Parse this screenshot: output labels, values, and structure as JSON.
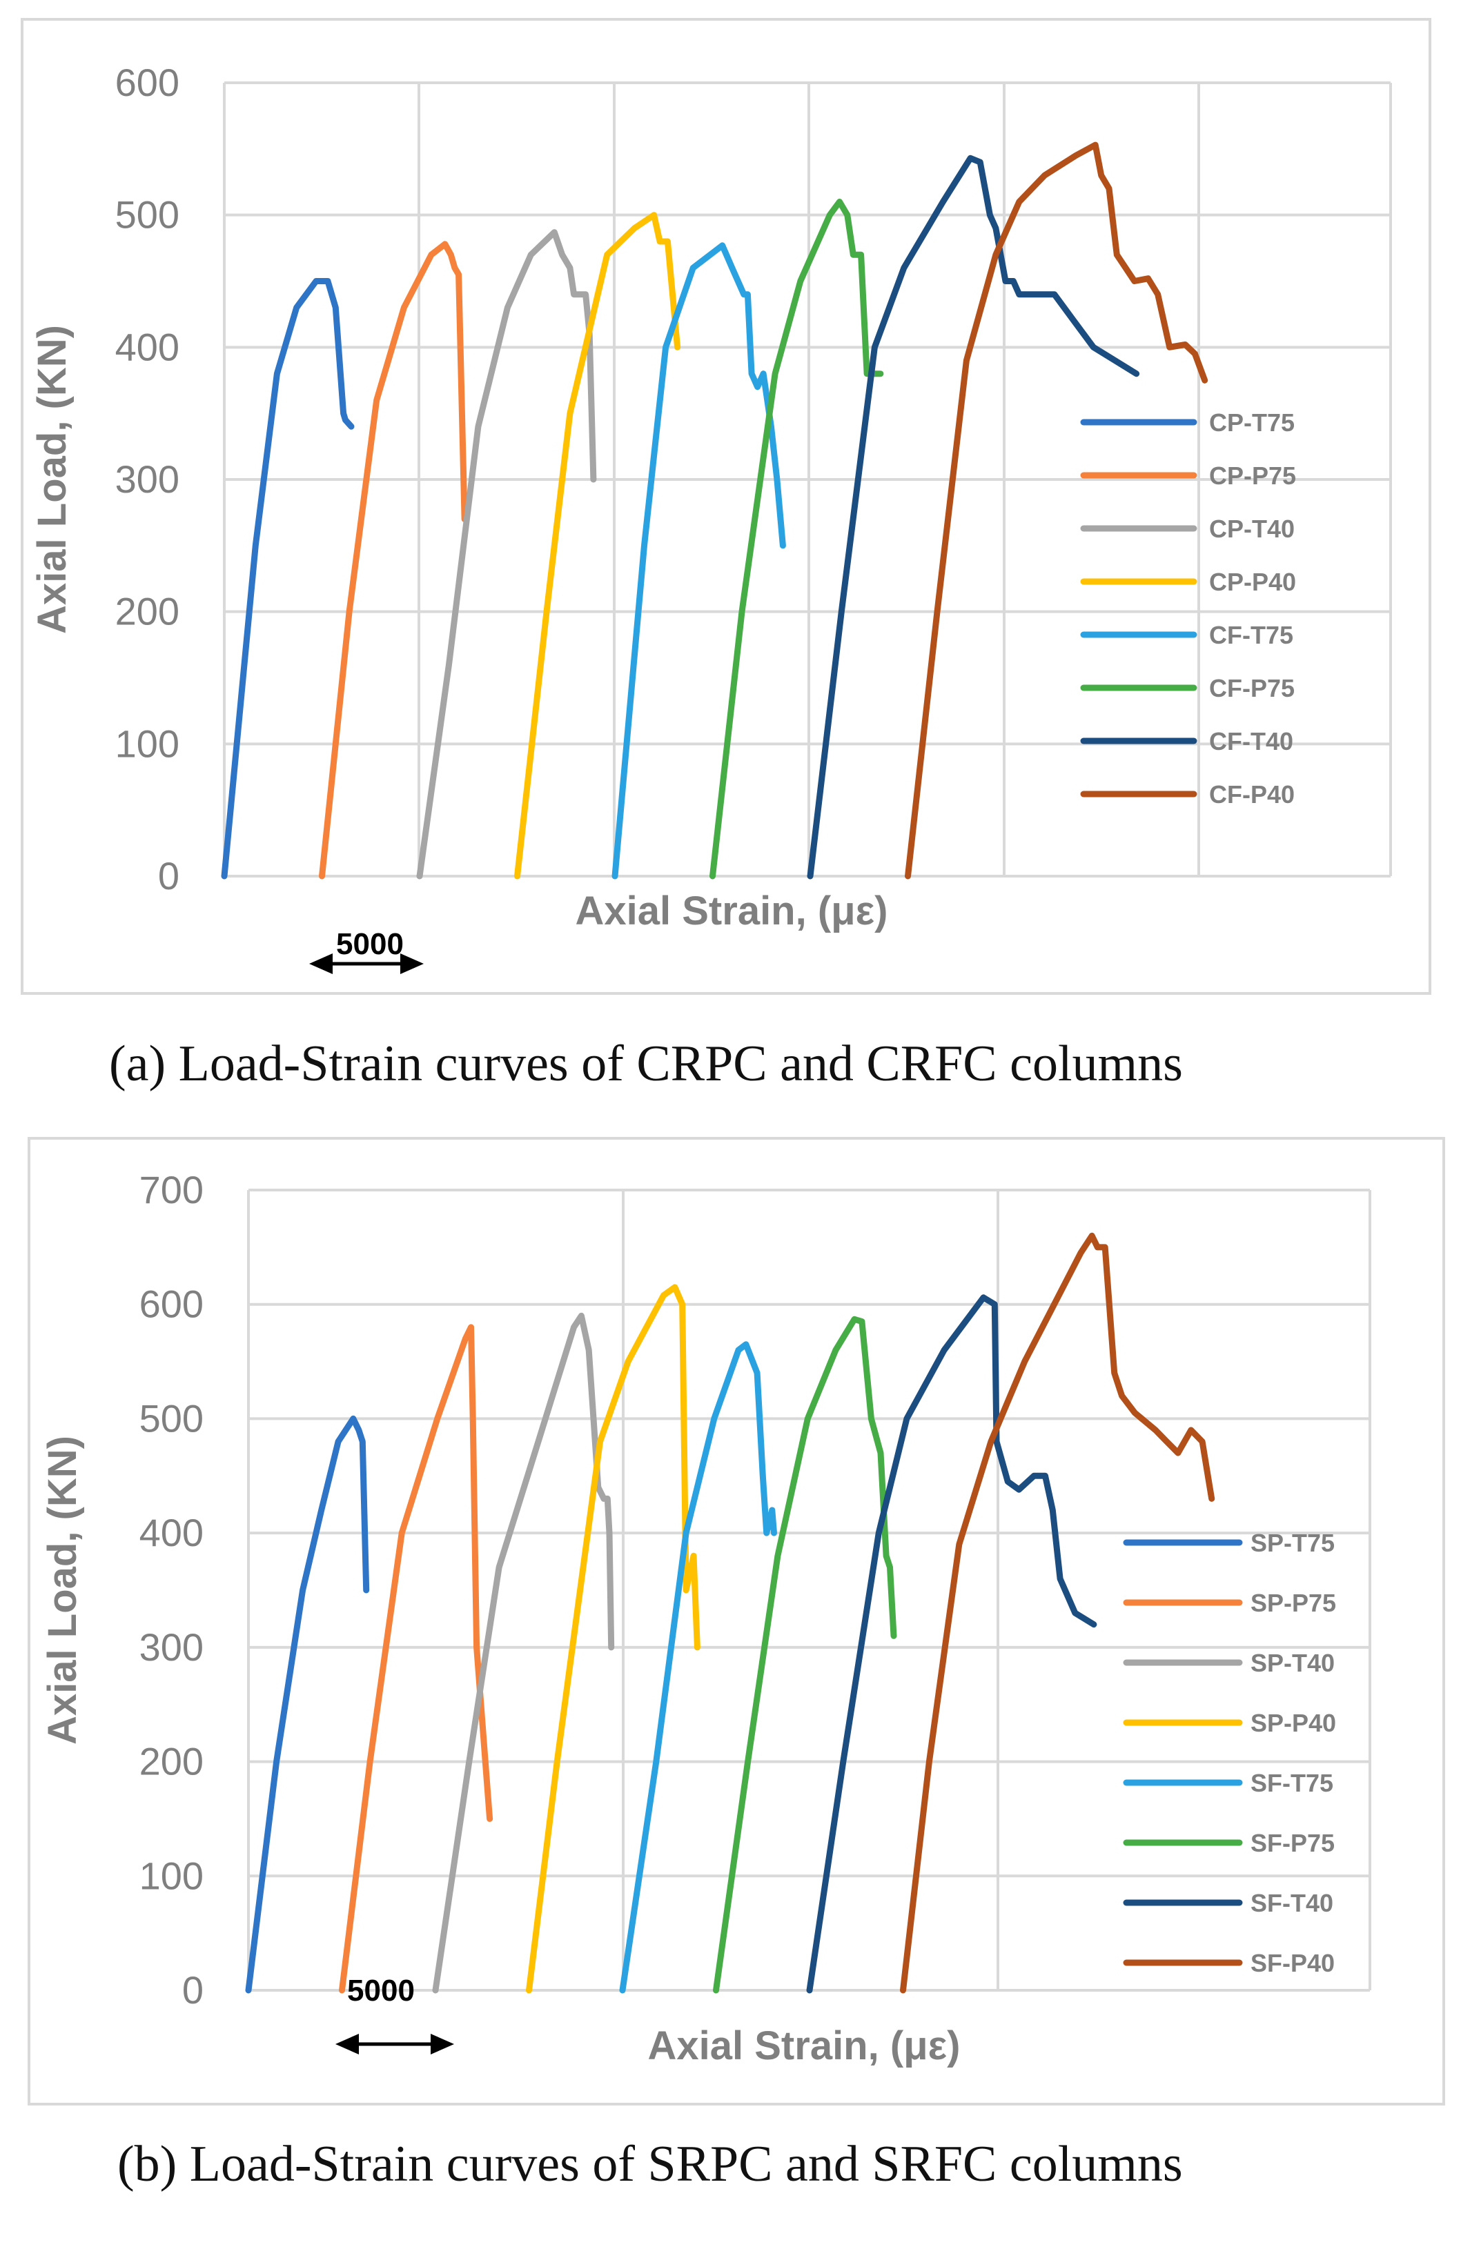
{
  "captions": {
    "a": "(a)  Load-Strain curves of CRPC and CRFC columns",
    "b": "(b)  Load-Strain curves of SRPC and SRFC columns"
  },
  "chart_data": [
    {
      "type": "line",
      "title": "",
      "xlabel": "Axial Strain, (με)",
      "ylabel": "Axial Load, (KN)",
      "ylim": [
        0,
        600
      ],
      "yticks": [
        0,
        100,
        200,
        300,
        400,
        500,
        600
      ],
      "xlim": [
        0,
        60000
      ],
      "x_tick_labels_shown": false,
      "scale_bar": {
        "label": "5000",
        "length": 5000
      },
      "grid": "vertical and horizontal major gridlines",
      "legend_position": "right",
      "series": [
        {
          "name": "CP-T75",
          "color": "#2e75c7",
          "points": [
            [
              0,
              0
            ],
            [
              1600,
              250
            ],
            [
              2700,
              380
            ],
            [
              3700,
              430
            ],
            [
              4700,
              450
            ],
            [
              5300,
              450
            ],
            [
              5700,
              430
            ],
            [
              6100,
              350
            ],
            [
              6200,
              345
            ],
            [
              6500,
              340
            ]
          ]
        },
        {
          "name": "CP-P75",
          "color": "#f5813a",
          "points": [
            [
              5000,
              0
            ],
            [
              6400,
              200
            ],
            [
              7800,
              360
            ],
            [
              9200,
              430
            ],
            [
              10600,
              470
            ],
            [
              11300,
              478
            ],
            [
              11600,
              470
            ],
            [
              11800,
              460
            ],
            [
              12000,
              455
            ],
            [
              12300,
              270
            ]
          ]
        },
        {
          "name": "CP-T40",
          "color": "#a5a5a5",
          "points": [
            [
              10000,
              0
            ],
            [
              11500,
              160
            ],
            [
              13000,
              340
            ],
            [
              14500,
              430
            ],
            [
              15700,
              470
            ],
            [
              16900,
              487
            ],
            [
              17300,
              470
            ],
            [
              17700,
              460
            ],
            [
              17900,
              440
            ],
            [
              18500,
              440
            ],
            [
              18700,
              410
            ],
            [
              18900,
              300
            ]
          ]
        },
        {
          "name": "CP-P40",
          "color": "#ffc000",
          "points": [
            [
              15000,
              0
            ],
            [
              16500,
              200
            ],
            [
              17700,
              350
            ],
            [
              19600,
              470
            ],
            [
              21000,
              490
            ],
            [
              22000,
              500
            ],
            [
              22300,
              480
            ],
            [
              22700,
              480
            ],
            [
              23200,
              400
            ]
          ]
        },
        {
          "name": "CF-T75",
          "color": "#2aa2e2",
          "points": [
            [
              20000,
              0
            ],
            [
              21500,
              250
            ],
            [
              22600,
              400
            ],
            [
              24000,
              460
            ],
            [
              25500,
              477
            ],
            [
              26000,
              460
            ],
            [
              26600,
              440
            ],
            [
              26800,
              440
            ],
            [
              27000,
              380
            ],
            [
              27300,
              370
            ],
            [
              27600,
              380
            ],
            [
              28000,
              340
            ],
            [
              28300,
              300
            ],
            [
              28600,
              250
            ]
          ]
        },
        {
          "name": "CF-P75",
          "color": "#46ac45",
          "points": [
            [
              25000,
              0
            ],
            [
              26500,
              200
            ],
            [
              28200,
              380
            ],
            [
              29500,
              450
            ],
            [
              31000,
              500
            ],
            [
              31500,
              510
            ],
            [
              31900,
              500
            ],
            [
              32200,
              470
            ],
            [
              32600,
              470
            ],
            [
              32900,
              380
            ],
            [
              33600,
              380
            ]
          ]
        },
        {
          "name": "CF-T40",
          "color": "#1c4d80",
          "points": [
            [
              30000,
              0
            ],
            [
              31600,
              200
            ],
            [
              33300,
              400
            ],
            [
              34800,
              460
            ],
            [
              36800,
              510
            ],
            [
              38200,
              543
            ],
            [
              38700,
              540
            ],
            [
              39200,
              500
            ],
            [
              39500,
              490
            ],
            [
              40000,
              450
            ],
            [
              40400,
              450
            ],
            [
              40700,
              440
            ],
            [
              42500,
              440
            ],
            [
              43500,
              420
            ],
            [
              44500,
              400
            ],
            [
              46700,
              380
            ]
          ]
        },
        {
          "name": "CF-P40",
          "color": "#b3501a",
          "points": [
            [
              35000,
              0
            ],
            [
              36500,
              200
            ],
            [
              38000,
              390
            ],
            [
              39500,
              470
            ],
            [
              40700,
              510
            ],
            [
              42000,
              530
            ],
            [
              43600,
              545
            ],
            [
              44600,
              553
            ],
            [
              44900,
              530
            ],
            [
              45300,
              520
            ],
            [
              45700,
              470
            ],
            [
              46600,
              450
            ],
            [
              47300,
              452
            ],
            [
              47800,
              440
            ],
            [
              48400,
              400
            ],
            [
              49200,
              402
            ],
            [
              49700,
              395
            ],
            [
              50200,
              375
            ]
          ]
        }
      ]
    },
    {
      "type": "line",
      "title": "",
      "xlabel": "Axial Strain, (με)",
      "ylabel": "Axial Load, (KN)",
      "ylim": [
        0,
        700
      ],
      "yticks": [
        0,
        100,
        200,
        300,
        400,
        500,
        600,
        700
      ],
      "xlim": [
        0,
        60000
      ],
      "x_tick_labels_shown": false,
      "scale_bar": {
        "label": "5000",
        "length": 5000
      },
      "grid": "vertical and horizontal major gridlines",
      "legend_position": "right",
      "series": [
        {
          "name": "SP-T75",
          "color": "#2e75c7",
          "points": [
            [
              0,
              0
            ],
            [
              1500,
              200
            ],
            [
              2900,
              350
            ],
            [
              3900,
              420
            ],
            [
              4800,
              480
            ],
            [
              5600,
              500
            ],
            [
              5900,
              490
            ],
            [
              6100,
              480
            ],
            [
              6300,
              350
            ]
          ]
        },
        {
          "name": "SP-P75",
          "color": "#f5813a",
          "points": [
            [
              5000,
              0
            ],
            [
              6500,
              200
            ],
            [
              8200,
              400
            ],
            [
              10100,
              500
            ],
            [
              11600,
              570
            ],
            [
              11900,
              580
            ],
            [
              12000,
              500
            ],
            [
              12200,
              300
            ],
            [
              12900,
              150
            ]
          ]
        },
        {
          "name": "SP-T40",
          "color": "#a5a5a5",
          "points": [
            [
              10000,
              0
            ],
            [
              11800,
              200
            ],
            [
              13400,
              370
            ],
            [
              15500,
              480
            ],
            [
              17400,
              580
            ],
            [
              17800,
              590
            ],
            [
              18200,
              560
            ],
            [
              18700,
              440
            ],
            [
              19000,
              430
            ],
            [
              19200,
              430
            ],
            [
              19300,
              400
            ],
            [
              19400,
              300
            ]
          ]
        },
        {
          "name": "SP-P40",
          "color": "#ffc000",
          "points": [
            [
              15000,
              0
            ],
            [
              16500,
              200
            ],
            [
              18800,
              480
            ],
            [
              20300,
              550
            ],
            [
              22200,
              608
            ],
            [
              22800,
              615
            ],
            [
              23200,
              600
            ],
            [
              23400,
              350
            ],
            [
              23800,
              380
            ],
            [
              24000,
              300
            ]
          ]
        },
        {
          "name": "SF-T75",
          "color": "#2aa2e2",
          "points": [
            [
              20000,
              0
            ],
            [
              21800,
              200
            ],
            [
              23400,
              400
            ],
            [
              24900,
              500
            ],
            [
              26200,
              560
            ],
            [
              26600,
              565
            ],
            [
              27200,
              540
            ],
            [
              27500,
              450
            ],
            [
              27700,
              400
            ],
            [
              28000,
              420
            ],
            [
              28100,
              400
            ]
          ]
        },
        {
          "name": "SF-P75",
          "color": "#46ac45",
          "points": [
            [
              25000,
              0
            ],
            [
              26700,
              200
            ],
            [
              28300,
              380
            ],
            [
              29900,
              500
            ],
            [
              31400,
              560
            ],
            [
              32400,
              587
            ],
            [
              32800,
              585
            ],
            [
              33300,
              500
            ],
            [
              33800,
              470
            ],
            [
              34100,
              380
            ],
            [
              34300,
              370
            ],
            [
              34500,
              310
            ]
          ]
        },
        {
          "name": "SF-T40",
          "color": "#1c4d80",
          "points": [
            [
              30000,
              0
            ],
            [
              31800,
              200
            ],
            [
              33700,
              400
            ],
            [
              35200,
              500
            ],
            [
              37200,
              560
            ],
            [
              39300,
              606
            ],
            [
              39900,
              600
            ],
            [
              40000,
              480
            ],
            [
              40600,
              445
            ],
            [
              41200,
              438
            ],
            [
              42000,
              450
            ],
            [
              42600,
              450
            ],
            [
              43000,
              420
            ],
            [
              43400,
              360
            ],
            [
              44200,
              330
            ],
            [
              45200,
              320
            ]
          ]
        },
        {
          "name": "SF-P40",
          "color": "#b3501a",
          "points": [
            [
              35000,
              0
            ],
            [
              36400,
              200
            ],
            [
              38000,
              390
            ],
            [
              39700,
              480
            ],
            [
              41500,
              550
            ],
            [
              43400,
              610
            ],
            [
              44500,
              645
            ],
            [
              45100,
              660
            ],
            [
              45400,
              650
            ],
            [
              45800,
              650
            ],
            [
              46300,
              540
            ],
            [
              46700,
              520
            ],
            [
              47400,
              505
            ],
            [
              48500,
              490
            ],
            [
              49100,
              480
            ],
            [
              49700,
              470
            ],
            [
              50400,
              490
            ],
            [
              51000,
              480
            ],
            [
              51500,
              430
            ]
          ]
        }
      ]
    }
  ]
}
